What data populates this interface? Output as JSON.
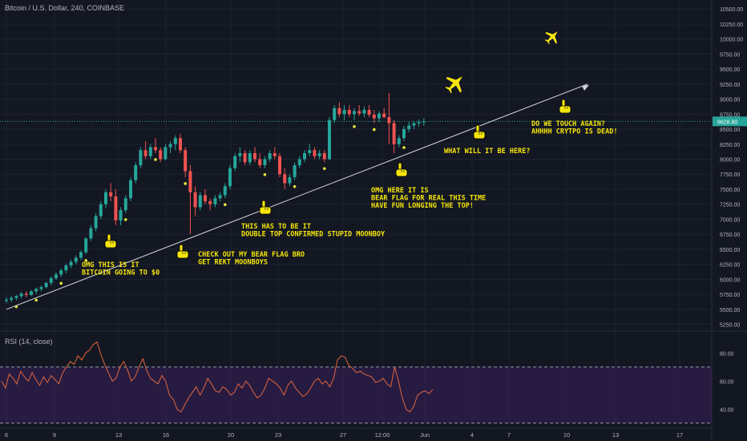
{
  "header": {
    "symbol_line": "Bitcoin / U.S. Dollar, 240, COINBASE"
  },
  "rsi_panel": {
    "label": "RSI (14, close)"
  },
  "colors": {
    "background": "#131722",
    "up": "#26a69a",
    "down": "#ef5350",
    "annotation": "#f5e50b",
    "rsi_line": "#e0663c",
    "rsi_band": "#3a1f5c",
    "price_line": "#26a69a"
  },
  "icons": [
    "hand-pointing-down-icon",
    "airplane-icon"
  ],
  "chart_data": [
    {
      "type": "candlestick",
      "price_axis": {
        "ylim": [
          5150,
          10650
        ],
        "ticks": [
          "10500.00",
          "10250.00",
          "10000.00",
          "9750.00",
          "9500.00",
          "9250.00",
          "9000.00",
          "8750.00",
          "8500.00",
          "8250.00",
          "8000.00",
          "7750.00",
          "7500.00",
          "7250.00",
          "7000.00",
          "6750.00",
          "6500.00",
          "6250.00",
          "6000.00",
          "5750.00",
          "5500.00",
          "5250.00"
        ],
        "current_price_label": "8628.80"
      },
      "time_axis": {
        "ticks": [
          "6",
          "9",
          "13",
          "16",
          "20",
          "23",
          "27",
          "12:00",
          "Jun",
          "4",
          "7",
          "10",
          "13",
          "17"
        ]
      },
      "candles": [
        [
          5642,
          5700,
          5600,
          5660
        ],
        [
          5660,
          5720,
          5620,
          5690
        ],
        [
          5690,
          5740,
          5650,
          5720
        ],
        [
          5720,
          5790,
          5680,
          5760
        ],
        [
          5760,
          5800,
          5700,
          5740
        ],
        [
          5740,
          5820,
          5720,
          5800
        ],
        [
          5800,
          5860,
          5760,
          5840
        ],
        [
          5840,
          5900,
          5800,
          5870
        ],
        [
          5870,
          5960,
          5850,
          5940
        ],
        [
          5940,
          6050,
          5900,
          6020
        ],
        [
          6020,
          6120,
          5990,
          6080
        ],
        [
          6080,
          6180,
          6040,
          6150
        ],
        [
          6150,
          6260,
          6100,
          6230
        ],
        [
          6230,
          6330,
          6190,
          6290
        ],
        [
          6290,
          6400,
          6250,
          6360
        ],
        [
          6360,
          6480,
          6320,
          6450
        ],
        [
          6450,
          6700,
          6420,
          6680
        ],
        [
          6680,
          6900,
          6640,
          6850
        ],
        [
          6850,
          7100,
          6800,
          7050
        ],
        [
          7050,
          7300,
          7000,
          7250
        ],
        [
          7250,
          7500,
          7180,
          7450
        ],
        [
          7450,
          7600,
          7300,
          7380
        ],
        [
          7380,
          7500,
          6900,
          6980
        ],
        [
          6980,
          7200,
          6900,
          7150
        ],
        [
          7150,
          7400,
          7100,
          7350
        ],
        [
          7350,
          7700,
          7300,
          7650
        ],
        [
          7650,
          7950,
          7600,
          7900
        ],
        [
          7900,
          8200,
          7850,
          8150
        ],
        [
          8150,
          8300,
          8000,
          8050
        ],
        [
          8050,
          8250,
          8000,
          8200
        ],
        [
          8200,
          8350,
          8100,
          8150
        ],
        [
          8150,
          8200,
          7950,
          8000
        ],
        [
          8000,
          8250,
          7980,
          8200
        ],
        [
          8200,
          8300,
          8100,
          8250
        ],
        [
          8250,
          8400,
          8150,
          8350
        ],
        [
          8350,
          8420,
          8100,
          8150
        ],
        [
          8150,
          8200,
          7700,
          7800
        ],
        [
          7800,
          7900,
          6750,
          7450
        ],
        [
          7450,
          7550,
          7050,
          7200
        ],
        [
          7200,
          7450,
          7150,
          7400
        ],
        [
          7400,
          7500,
          7250,
          7300
        ],
        [
          7300,
          7350,
          7150,
          7250
        ],
        [
          7250,
          7400,
          7200,
          7350
        ],
        [
          7350,
          7450,
          7300,
          7400
        ],
        [
          7400,
          7600,
          7350,
          7550
        ],
        [
          7550,
          7900,
          7500,
          7850
        ],
        [
          7850,
          8100,
          7800,
          8050
        ],
        [
          8050,
          8200,
          7950,
          8100
        ],
        [
          8100,
          8150,
          7900,
          7950
        ],
        [
          7950,
          8150,
          7900,
          8100
        ],
        [
          8100,
          8200,
          7950,
          8000
        ],
        [
          8000,
          8100,
          7850,
          7900
        ],
        [
          7900,
          8050,
          7850,
          8000
        ],
        [
          8000,
          8150,
          7950,
          8100
        ],
        [
          8100,
          8200,
          8000,
          8050
        ],
        [
          8050,
          8100,
          7700,
          7750
        ],
        [
          7750,
          7850,
          7500,
          7600
        ],
        [
          7600,
          7750,
          7550,
          7700
        ],
        [
          7700,
          7950,
          7650,
          7900
        ],
        [
          7900,
          8050,
          7850,
          8000
        ],
        [
          8000,
          8150,
          7950,
          8100
        ],
        [
          8100,
          8250,
          8050,
          8150
        ],
        [
          8150,
          8200,
          8000,
          8050
        ],
        [
          8050,
          8150,
          8000,
          8100
        ],
        [
          8100,
          8150,
          7950,
          8000
        ],
        [
          8000,
          8700,
          7980,
          8650
        ],
        [
          8650,
          8900,
          8600,
          8850
        ],
        [
          8850,
          8950,
          8700,
          8750
        ],
        [
          8750,
          8900,
          8650,
          8820
        ],
        [
          8820,
          8900,
          8700,
          8750
        ],
        [
          8750,
          8850,
          8650,
          8800
        ],
        [
          8800,
          8900,
          8720,
          8760
        ],
        [
          8760,
          8880,
          8700,
          8820
        ],
        [
          8820,
          8900,
          8700,
          8740
        ],
        [
          8740,
          8820,
          8600,
          8680
        ],
        [
          8680,
          8800,
          8620,
          8760
        ],
        [
          8760,
          8850,
          8680,
          8700
        ],
        [
          8700,
          9100,
          8250,
          8600
        ],
        [
          8600,
          8650,
          8100,
          8250
        ],
        [
          8250,
          8400,
          8200,
          8350
        ],
        [
          8350,
          8550,
          8300,
          8500
        ],
        [
          8500,
          8620,
          8450,
          8560
        ],
        [
          8560,
          8640,
          8500,
          8600
        ],
        [
          8600,
          8660,
          8540,
          8620
        ],
        [
          8620,
          8680,
          8560,
          8629
        ]
      ],
      "trendline_label": "ascending support line",
      "annotations": [
        {
          "text": "OMG THIS IS IT\nBITCOIN GOING TO $0",
          "price": 6300,
          "index": 20
        },
        {
          "text": "CHECK OUT MY BEAR FLAG BRO\nGET REKT MOONBOYS",
          "price": 6500,
          "index": 42
        },
        {
          "text": "THIS HAS TO BE IT\nDOUBLE TOP CONFIRMED STUPID MOONBOY",
          "price": 7000,
          "index": 55
        },
        {
          "text": "OMG HERE IT IS\nBEAR FLAG FOR REAL THIS TIME\nHAVE FUN LONGING THE TOP!",
          "price": 7550,
          "index": 88
        },
        {
          "text": "WHAT WILL IT BE HERE?",
          "price": 8250,
          "index": 104
        },
        {
          "text": "DO WE TOUCH AGAIN?\nAHHHH CRYTPO IS DEAD!",
          "price": 8700,
          "index": 124
        }
      ]
    },
    {
      "type": "line",
      "name": "RSI (14, close)",
      "ylim": [
        27,
        95
      ],
      "ticks": [
        "80.00",
        "60.00",
        "40.00"
      ],
      "bands": [
        30,
        70
      ],
      "values": [
        60,
        55,
        65,
        62,
        58,
        67,
        63,
        60,
        66,
        61,
        57,
        63,
        59,
        64,
        61,
        58,
        66,
        70,
        74,
        72,
        78,
        75,
        80,
        82,
        86,
        88,
        79,
        72,
        66,
        60,
        62,
        70,
        74,
        68,
        60,
        63,
        70,
        76,
        68,
        62,
        60,
        58,
        64,
        60,
        50,
        47,
        40,
        38,
        43,
        48,
        52,
        56,
        50,
        55,
        62,
        58,
        53,
        52,
        56,
        54,
        50,
        52,
        58,
        55,
        60,
        57,
        52,
        48,
        50,
        55,
        62,
        60,
        58,
        55,
        50,
        57,
        60,
        55,
        52,
        49,
        51,
        55,
        60,
        62,
        58,
        60,
        56,
        62,
        75,
        78,
        77,
        71,
        69,
        66,
        67,
        65,
        64,
        63,
        59,
        60,
        62,
        58,
        56,
        70,
        60,
        48,
        40,
        38,
        42,
        50,
        52,
        53,
        51,
        54
      ]
    }
  ]
}
